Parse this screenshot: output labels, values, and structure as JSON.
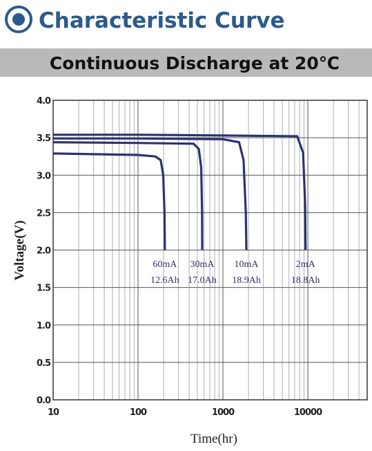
{
  "chart_data": {
    "type": "line",
    "title": "Characteristic Curve",
    "subtitle": "Continuous Discharge at 20℃",
    "x_label": "Time(hr)",
    "y_label": "Voltage(V)",
    "x_scale": "log",
    "xlim": [
      10,
      50000
    ],
    "ylim": [
      0,
      4
    ],
    "xticks": [
      10,
      100,
      1000,
      10000
    ],
    "yticks": [
      {
        "value": 0,
        "label": "0.0"
      },
      {
        "value": 0.5,
        "label": "0.5"
      },
      {
        "value": 1,
        "label": "1.0"
      },
      {
        "value": 1.5,
        "label": "1.5"
      },
      {
        "value": 2,
        "label": "2.0"
      },
      {
        "value": 2.5,
        "label": "2.5"
      },
      {
        "value": 3,
        "label": "3.0"
      },
      {
        "value": 3.5,
        "label": "3.5"
      },
      {
        "value": 4,
        "label": "4.0"
      }
    ],
    "grid": true,
    "minor_grid": true,
    "series": [
      {
        "name": "60mA",
        "capacity": "12.6Ah",
        "color": "#2b3270",
        "x": [
          10,
          100,
          160,
          185,
          198,
          205,
          207
        ],
        "values": [
          3.29,
          3.27,
          3.25,
          3.2,
          3.0,
          2.5,
          2.0
        ]
      },
      {
        "name": "30mA",
        "capacity": "17.0Ah",
        "color": "#2b3270",
        "x": [
          10,
          100,
          450,
          520,
          555,
          568,
          570
        ],
        "values": [
          3.44,
          3.43,
          3.42,
          3.35,
          3.1,
          2.5,
          2.0
        ]
      },
      {
        "name": "10mA",
        "capacity": "18.9Ah",
        "color": "#2b3270",
        "x": [
          10,
          100,
          1000,
          1550,
          1750,
          1860,
          1890
        ],
        "values": [
          3.49,
          3.49,
          3.48,
          3.44,
          3.2,
          2.5,
          2.0
        ]
      },
      {
        "name": "2mA",
        "capacity": "18.8Ah",
        "color": "#2b3270",
        "x": [
          10,
          100,
          1000,
          7500,
          8800,
          9300,
          9400
        ],
        "values": [
          3.54,
          3.54,
          3.53,
          3.52,
          3.3,
          2.6,
          2.0
        ]
      }
    ]
  }
}
